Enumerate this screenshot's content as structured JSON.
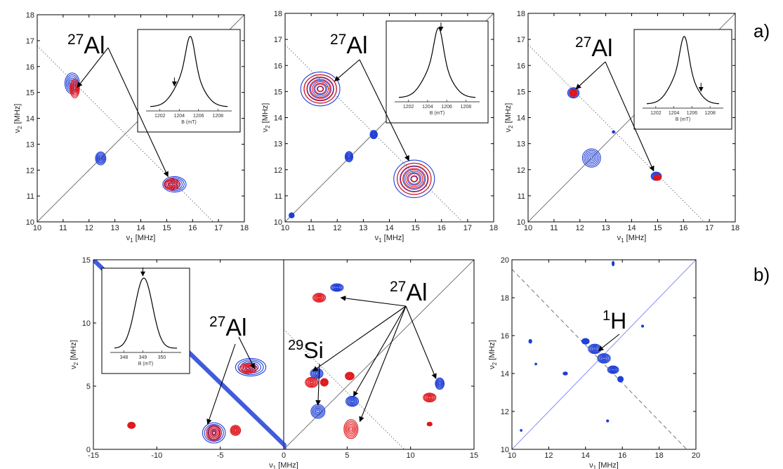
{
  "colors": {
    "blue": "#1f3fd6",
    "red": "#e0161c",
    "line": "#555555",
    "diag_b": "#8a8ef0"
  },
  "labels": {
    "a": "a)",
    "b": "b)"
  },
  "chart_data": [
    {
      "type": "scatter",
      "id": "a1",
      "xlabel": "ν1 [MHz]",
      "ylabel": "ν2 [MHz]",
      "xlim": [
        10,
        18
      ],
      "ylim": [
        10,
        18
      ],
      "xticks": [
        10,
        11,
        12,
        13,
        14,
        15,
        16,
        17,
        18
      ],
      "yticks": [
        10,
        11,
        12,
        13,
        14,
        15,
        16,
        17,
        18
      ],
      "nucleus_label": {
        "sup": "27",
        "text": "Al"
      },
      "peaks": [
        {
          "x": 11.35,
          "y": 15.35,
          "rx": 0.28,
          "ry": 0.4,
          "color": "blue"
        },
        {
          "x": 11.45,
          "y": 15.15,
          "rx": 0.18,
          "ry": 0.36,
          "color": "red"
        },
        {
          "x": 12.45,
          "y": 12.45,
          "rx": 0.2,
          "ry": 0.25,
          "color": "blue"
        },
        {
          "x": 15.3,
          "y": 11.45,
          "rx": 0.45,
          "ry": 0.3,
          "color": "blue"
        },
        {
          "x": 15.2,
          "y": 11.45,
          "rx": 0.3,
          "ry": 0.22,
          "color": "red"
        }
      ],
      "inset": {
        "xlabel": "B (mT)",
        "xticks": [
          1202,
          1204,
          1206,
          1208
        ],
        "xlim": [
          1201,
          1209
        ],
        "arrow_at": 1203.5
      }
    },
    {
      "type": "scatter",
      "id": "a2",
      "xlabel": "ν1 [MHz]",
      "ylabel": "ν2 [MHz]",
      "xlim": [
        10,
        18
      ],
      "ylim": [
        10,
        18
      ],
      "xticks": [
        10,
        11,
        12,
        13,
        14,
        15,
        16,
        17,
        18
      ],
      "yticks": [
        10,
        11,
        12,
        13,
        14,
        15,
        16,
        17,
        18
      ],
      "nucleus_label": {
        "sup": "27",
        "text": "Al"
      },
      "peaks": [
        {
          "x": 11.35,
          "y": 15.1,
          "rx": 0.75,
          "ry": 0.65,
          "color": "blue"
        },
        {
          "x": 11.35,
          "y": 15.1,
          "rx": 0.62,
          "ry": 0.55,
          "color": "red"
        },
        {
          "x": 12.45,
          "y": 12.5,
          "rx": 0.15,
          "ry": 0.2,
          "color": "blue"
        },
        {
          "x": 13.4,
          "y": 13.35,
          "rx": 0.14,
          "ry": 0.16,
          "color": "blue"
        },
        {
          "x": 10.25,
          "y": 10.25,
          "rx": 0.1,
          "ry": 0.1,
          "color": "blue"
        },
        {
          "x": 14.95,
          "y": 11.65,
          "rx": 0.78,
          "ry": 0.72,
          "color": "blue"
        },
        {
          "x": 14.95,
          "y": 11.65,
          "rx": 0.65,
          "ry": 0.6,
          "color": "red"
        }
      ],
      "inset": {
        "xlabel": "B (mT)",
        "xticks": [
          1202,
          1204,
          1206,
          1208
        ],
        "xlim": [
          1201,
          1209
        ],
        "arrow_at": 1205.4
      }
    },
    {
      "type": "scatter",
      "id": "a3",
      "xlabel": "ν1 [MHz]",
      "ylabel": "ν2 [MHz]",
      "xlim": [
        10,
        18
      ],
      "ylim": [
        10,
        18
      ],
      "xticks": [
        10,
        11,
        12,
        13,
        14,
        15,
        16,
        17,
        18
      ],
      "yticks": [
        10,
        11,
        12,
        13,
        14,
        15,
        16,
        17,
        18
      ],
      "nucleus_label": {
        "sup": "27",
        "text": "Al"
      },
      "peaks": [
        {
          "x": 11.75,
          "y": 14.95,
          "rx": 0.22,
          "ry": 0.2,
          "color": "blue"
        },
        {
          "x": 11.75,
          "y": 14.95,
          "rx": 0.14,
          "ry": 0.14,
          "color": "red"
        },
        {
          "x": 12.45,
          "y": 12.45,
          "rx": 0.35,
          "ry": 0.35,
          "color": "blue"
        },
        {
          "x": 14.95,
          "y": 11.75,
          "rx": 0.2,
          "ry": 0.16,
          "color": "blue"
        },
        {
          "x": 15.0,
          "y": 11.7,
          "rx": 0.14,
          "ry": 0.11,
          "color": "red"
        },
        {
          "x": 13.3,
          "y": 13.45,
          "rx": 0.05,
          "ry": 0.05,
          "color": "blue"
        }
      ],
      "inset": {
        "xlabel": "B (mT)",
        "xticks": [
          1202,
          1204,
          1206,
          1208
        ],
        "xlim": [
          1201,
          1209
        ],
        "arrow_at": 1207.0
      }
    },
    {
      "type": "scatter",
      "id": "b1",
      "xlabel": "ν1 [MHz]",
      "ylabel": "ν2 [MHz]",
      "xlim": [
        -15,
        15
      ],
      "ylim": [
        0,
        15
      ],
      "xticks": [
        -15,
        -10,
        -5,
        0,
        5,
        10,
        15
      ],
      "yticks": [
        0,
        5,
        10,
        15
      ],
      "labels": [
        {
          "sup": "27",
          "text": "Al"
        },
        {
          "sup": "29",
          "text": "Si"
        },
        {
          "sup": "27",
          "text": "Al"
        }
      ],
      "peaks": [
        {
          "x": -2.6,
          "y": 6.5,
          "rx": 1.2,
          "ry": 0.7,
          "color": "blue"
        },
        {
          "x": -2.8,
          "y": 6.4,
          "rx": 0.7,
          "ry": 0.4,
          "color": "red"
        },
        {
          "x": -5.5,
          "y": 1.3,
          "rx": 0.9,
          "ry": 0.8,
          "color": "blue"
        },
        {
          "x": -5.5,
          "y": 1.3,
          "rx": 0.6,
          "ry": 0.6,
          "color": "red"
        },
        {
          "x": -3.8,
          "y": 1.5,
          "rx": 0.4,
          "ry": 0.4,
          "color": "red"
        },
        {
          "x": -12.0,
          "y": 1.9,
          "rx": 0.3,
          "ry": 0.25,
          "color": "red"
        },
        {
          "x": 2.8,
          "y": 12.0,
          "rx": 0.5,
          "ry": 0.35,
          "color": "red"
        },
        {
          "x": 4.2,
          "y": 12.8,
          "rx": 0.5,
          "ry": 0.3,
          "color": "blue"
        },
        {
          "x": 2.6,
          "y": 6.0,
          "rx": 0.5,
          "ry": 0.4,
          "color": "blue"
        },
        {
          "x": 2.2,
          "y": 5.3,
          "rx": 0.5,
          "ry": 0.4,
          "color": "red"
        },
        {
          "x": 3.2,
          "y": 5.3,
          "rx": 0.3,
          "ry": 0.3,
          "color": "red"
        },
        {
          "x": 5.2,
          "y": 5.8,
          "rx": 0.35,
          "ry": 0.3,
          "color": "red"
        },
        {
          "x": 2.7,
          "y": 3.0,
          "rx": 0.55,
          "ry": 0.55,
          "color": "blue"
        },
        {
          "x": 5.4,
          "y": 3.8,
          "rx": 0.5,
          "ry": 0.4,
          "color": "blue"
        },
        {
          "x": 5.3,
          "y": 1.6,
          "rx": 0.55,
          "ry": 0.75,
          "color": "red"
        },
        {
          "x": 11.5,
          "y": 4.1,
          "rx": 0.5,
          "ry": 0.35,
          "color": "red"
        },
        {
          "x": 12.3,
          "y": 5.2,
          "rx": 0.35,
          "ry": 0.45,
          "color": "blue"
        },
        {
          "x": 11.5,
          "y": 2.0,
          "rx": 0.2,
          "ry": 0.15,
          "color": "red"
        }
      ],
      "inset": {
        "xlabel": "B (mT)",
        "xticks": [
          348,
          349,
          350
        ],
        "xlim": [
          347.5,
          350.8
        ],
        "arrow_at": 349
      }
    },
    {
      "type": "scatter",
      "id": "b2",
      "xlabel": "ν1 [MHz]",
      "ylabel": "ν2 [MHz]",
      "xlim": [
        10,
        20
      ],
      "ylim": [
        10,
        20
      ],
      "xticks": [
        10,
        12,
        14,
        16,
        18,
        20
      ],
      "yticks": [
        10,
        12,
        14,
        16,
        18,
        20
      ],
      "nucleus_label": {
        "sup": "1",
        "text": "H"
      },
      "peaks": [
        {
          "x": 14.0,
          "y": 15.7,
          "rx": 0.2,
          "ry": 0.15,
          "color": "blue"
        },
        {
          "x": 14.5,
          "y": 15.3,
          "rx": 0.35,
          "ry": 0.25,
          "color": "blue"
        },
        {
          "x": 15.0,
          "y": 14.8,
          "rx": 0.35,
          "ry": 0.25,
          "color": "blue"
        },
        {
          "x": 15.5,
          "y": 14.2,
          "rx": 0.3,
          "ry": 0.2,
          "color": "blue"
        },
        {
          "x": 15.9,
          "y": 13.7,
          "rx": 0.15,
          "ry": 0.15,
          "color": "blue"
        },
        {
          "x": 12.9,
          "y": 14.0,
          "rx": 0.12,
          "ry": 0.08,
          "color": "blue"
        },
        {
          "x": 11.0,
          "y": 15.7,
          "rx": 0.08,
          "ry": 0.1,
          "color": "blue"
        },
        {
          "x": 11.3,
          "y": 14.5,
          "rx": 0.05,
          "ry": 0.05,
          "color": "blue"
        },
        {
          "x": 15.5,
          "y": 19.8,
          "rx": 0.06,
          "ry": 0.12,
          "color": "blue"
        },
        {
          "x": 17.1,
          "y": 16.5,
          "rx": 0.06,
          "ry": 0.06,
          "color": "blue"
        },
        {
          "x": 15.2,
          "y": 11.5,
          "rx": 0.06,
          "ry": 0.06,
          "color": "blue"
        },
        {
          "x": 10.5,
          "y": 11.0,
          "rx": 0.05,
          "ry": 0.05,
          "color": "blue"
        }
      ]
    }
  ]
}
